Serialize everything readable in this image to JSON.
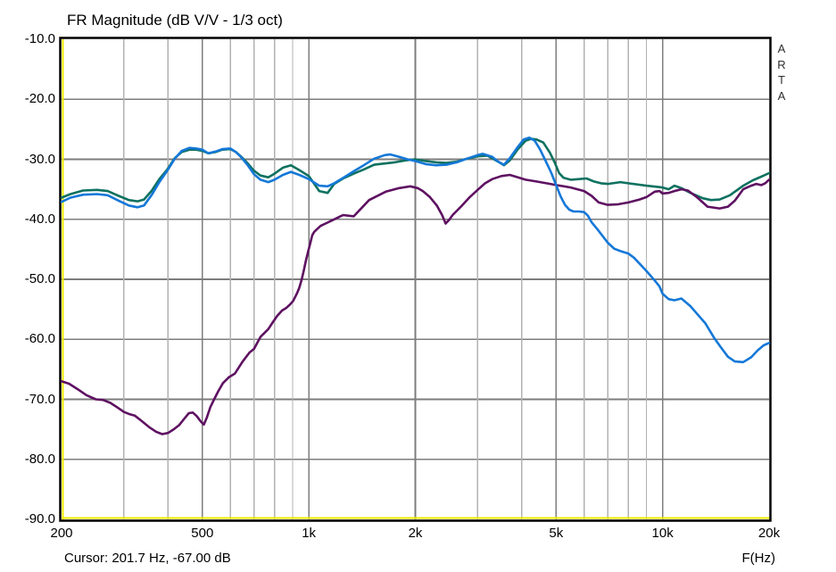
{
  "title": "FR Magnitude (dB V/V - 1/3 oct)",
  "watermark": "ARTA",
  "status": {
    "cursor": "Cursor: 201.7 Hz, -67.00 dB",
    "x_unit": "F(Hz)"
  },
  "colors": {
    "background": "#ffffff",
    "border": "#000000",
    "inner_edge_yellow": "#f0ee00",
    "grid_major": "#7d7d7d",
    "grid_minor": "#b2b2b2",
    "curve_green": "#0e7160",
    "curve_blue": "#1478d8",
    "curve_purple": "#5e1161",
    "watermark_text": "#2e2e2e"
  },
  "axes": {
    "y": {
      "tick_labels": [
        "-10.0",
        "-20.0",
        "-30.0",
        "-40.0",
        "-50.0",
        "-60.0",
        "-70.0",
        "-80.0",
        "-90.0"
      ],
      "tick_values": [
        -10,
        -20,
        -30,
        -40,
        -50,
        -60,
        -70,
        -80,
        -90
      ],
      "gridline_values": [
        -20,
        -30,
        -40,
        -50,
        -60,
        -70,
        -80
      ]
    },
    "x": {
      "tick_labels": [
        "200",
        "500",
        "1k",
        "2k",
        "5k",
        "10k",
        "20k"
      ],
      "tick_values": [
        200,
        500,
        1000,
        2000,
        5000,
        10000,
        20000
      ],
      "major_gridlines_hz": [
        500,
        1000,
        2000,
        5000,
        10000
      ],
      "minor_gridlines_hz": [
        300,
        400,
        600,
        700,
        800,
        900,
        3000,
        4000,
        6000,
        7000,
        8000,
        9000
      ]
    }
  },
  "chart_data": {
    "type": "line",
    "title": "FR Magnitude (dB V/V - 1/3 oct)",
    "xlabel": "F(Hz)",
    "ylabel": "dB V/V",
    "x_scale": "log",
    "xlim": [
      200,
      20000
    ],
    "ylim": [
      -90,
      -10
    ],
    "grid": true,
    "legend": "none",
    "series": [
      {
        "name": "green-trace",
        "color": "#0e7160",
        "points": [
          [
            200,
            -36.4
          ],
          [
            212,
            -35.8
          ],
          [
            230,
            -35.2
          ],
          [
            252,
            -35.1
          ],
          [
            270,
            -35.3
          ],
          [
            290,
            -36.1
          ],
          [
            310,
            -36.8
          ],
          [
            328,
            -37.0
          ],
          [
            342,
            -36.7
          ],
          [
            360,
            -35.2
          ],
          [
            378,
            -33.3
          ],
          [
            398,
            -31.7
          ],
          [
            418,
            -29.8
          ],
          [
            437,
            -28.8
          ],
          [
            460,
            -28.4
          ],
          [
            480,
            -28.4
          ],
          [
            500,
            -28.6
          ],
          [
            520,
            -29.0
          ],
          [
            545,
            -28.8
          ],
          [
            570,
            -28.4
          ],
          [
            600,
            -28.3
          ],
          [
            622,
            -28.8
          ],
          [
            645,
            -29.6
          ],
          [
            672,
            -30.7
          ],
          [
            700,
            -31.9
          ],
          [
            730,
            -32.7
          ],
          [
            768,
            -33.0
          ],
          [
            800,
            -32.4
          ],
          [
            845,
            -31.4
          ],
          [
            890,
            -31.0
          ],
          [
            940,
            -31.8
          ],
          [
            1000,
            -32.8
          ],
          [
            1070,
            -35.3
          ],
          [
            1130,
            -35.6
          ],
          [
            1180,
            -34.1
          ],
          [
            1250,
            -33.2
          ],
          [
            1340,
            -32.4
          ],
          [
            1430,
            -31.7
          ],
          [
            1530,
            -30.9
          ],
          [
            1640,
            -30.7
          ],
          [
            1750,
            -30.5
          ],
          [
            1870,
            -30.2
          ],
          [
            2000,
            -30.0
          ],
          [
            2140,
            -30.3
          ],
          [
            2290,
            -30.5
          ],
          [
            2450,
            -30.6
          ],
          [
            2620,
            -30.4
          ],
          [
            2800,
            -29.9
          ],
          [
            3000,
            -29.5
          ],
          [
            3200,
            -29.4
          ],
          [
            3430,
            -30.4
          ],
          [
            3560,
            -31.0
          ],
          [
            3700,
            -30.2
          ],
          [
            3900,
            -28.3
          ],
          [
            4100,
            -26.9
          ],
          [
            4250,
            -26.6
          ],
          [
            4400,
            -26.7
          ],
          [
            4600,
            -27.2
          ],
          [
            4800,
            -28.9
          ],
          [
            4950,
            -30.5
          ],
          [
            5100,
            -32.3
          ],
          [
            5250,
            -33.1
          ],
          [
            5500,
            -33.4
          ],
          [
            5800,
            -33.3
          ],
          [
            6100,
            -33.2
          ],
          [
            6400,
            -33.7
          ],
          [
            6700,
            -34.0
          ],
          [
            7000,
            -34.1
          ],
          [
            7600,
            -33.8
          ],
          [
            8000,
            -34.0
          ],
          [
            9000,
            -34.4
          ],
          [
            10000,
            -34.7
          ],
          [
            10400,
            -35.0
          ],
          [
            10800,
            -34.4
          ],
          [
            11300,
            -34.8
          ],
          [
            12000,
            -35.6
          ],
          [
            13000,
            -36.5
          ],
          [
            13700,
            -36.8
          ],
          [
            14500,
            -36.7
          ],
          [
            15500,
            -36.0
          ],
          [
            16900,
            -34.4
          ],
          [
            18000,
            -33.5
          ],
          [
            19000,
            -32.9
          ],
          [
            20000,
            -32.3
          ]
        ]
      },
      {
        "name": "purple-trace",
        "color": "#5e1161",
        "points": [
          [
            200,
            -67.0
          ],
          [
            210,
            -67.4
          ],
          [
            222,
            -68.3
          ],
          [
            235,
            -69.3
          ],
          [
            250,
            -70.0
          ],
          [
            262,
            -70.1
          ],
          [
            275,
            -70.6
          ],
          [
            290,
            -71.5
          ],
          [
            300,
            -72.1
          ],
          [
            312,
            -72.5
          ],
          [
            322,
            -72.7
          ],
          [
            335,
            -73.5
          ],
          [
            355,
            -74.7
          ],
          [
            370,
            -75.4
          ],
          [
            385,
            -75.8
          ],
          [
            400,
            -75.6
          ],
          [
            415,
            -75.0
          ],
          [
            430,
            -74.3
          ],
          [
            445,
            -73.2
          ],
          [
            458,
            -72.3
          ],
          [
            470,
            -72.2
          ],
          [
            482,
            -72.8
          ],
          [
            495,
            -73.7
          ],
          [
            505,
            -74.2
          ],
          [
            515,
            -73.0
          ],
          [
            527,
            -71.3
          ],
          [
            540,
            -70.0
          ],
          [
            555,
            -68.6
          ],
          [
            572,
            -67.3
          ],
          [
            595,
            -66.3
          ],
          [
            618,
            -65.7
          ],
          [
            650,
            -63.7
          ],
          [
            680,
            -62.2
          ],
          [
            700,
            -61.6
          ],
          [
            730,
            -59.6
          ],
          [
            768,
            -58.3
          ],
          [
            790,
            -57.2
          ],
          [
            814,
            -56.1
          ],
          [
            840,
            -55.2
          ],
          [
            862,
            -54.8
          ],
          [
            885,
            -54.2
          ],
          [
            903,
            -53.6
          ],
          [
            925,
            -52.4
          ],
          [
            940,
            -51.4
          ],
          [
            955,
            -50.0
          ],
          [
            967,
            -48.6
          ],
          [
            980,
            -47.0
          ],
          [
            995,
            -45.4
          ],
          [
            1010,
            -43.9
          ],
          [
            1022,
            -42.7
          ],
          [
            1035,
            -42.1
          ],
          [
            1052,
            -41.7
          ],
          [
            1080,
            -41.1
          ],
          [
            1115,
            -40.7
          ],
          [
            1180,
            -40.0
          ],
          [
            1250,
            -39.3
          ],
          [
            1340,
            -39.5
          ],
          [
            1480,
            -36.8
          ],
          [
            1650,
            -35.4
          ],
          [
            1800,
            -34.8
          ],
          [
            1935,
            -34.5
          ],
          [
            2030,
            -34.8
          ],
          [
            2100,
            -35.3
          ],
          [
            2200,
            -36.3
          ],
          [
            2300,
            -37.7
          ],
          [
            2380,
            -39.3
          ],
          [
            2437,
            -40.7
          ],
          [
            2500,
            -40.0
          ],
          [
            2550,
            -39.3
          ],
          [
            2700,
            -37.8
          ],
          [
            2850,
            -36.3
          ],
          [
            3000,
            -35.1
          ],
          [
            3150,
            -34.0
          ],
          [
            3300,
            -33.3
          ],
          [
            3500,
            -32.8
          ],
          [
            3700,
            -32.6
          ],
          [
            3900,
            -33.0
          ],
          [
            4100,
            -33.4
          ],
          [
            4400,
            -33.7
          ],
          [
            4700,
            -34.0
          ],
          [
            5000,
            -34.3
          ],
          [
            5500,
            -34.7
          ],
          [
            6000,
            -35.3
          ],
          [
            6300,
            -36.1
          ],
          [
            6600,
            -37.2
          ],
          [
            7000,
            -37.6
          ],
          [
            7500,
            -37.5
          ],
          [
            8000,
            -37.2
          ],
          [
            8600,
            -36.7
          ],
          [
            9000,
            -36.3
          ],
          [
            9500,
            -35.4
          ],
          [
            9800,
            -35.3
          ],
          [
            10000,
            -35.7
          ],
          [
            10400,
            -35.6
          ],
          [
            10800,
            -35.3
          ],
          [
            11300,
            -35.0
          ],
          [
            11800,
            -35.2
          ],
          [
            12500,
            -36.3
          ],
          [
            13400,
            -37.9
          ],
          [
            14500,
            -38.2
          ],
          [
            15300,
            -37.9
          ],
          [
            16000,
            -36.9
          ],
          [
            16900,
            -35.0
          ],
          [
            17800,
            -34.4
          ],
          [
            18400,
            -34.1
          ],
          [
            19000,
            -34.3
          ],
          [
            19500,
            -34.0
          ],
          [
            20000,
            -33.4
          ]
        ]
      },
      {
        "name": "blue-trace",
        "color": "#1478d8",
        "points": [
          [
            200,
            -37.1
          ],
          [
            212,
            -36.4
          ],
          [
            230,
            -35.9
          ],
          [
            252,
            -35.8
          ],
          [
            270,
            -36.0
          ],
          [
            290,
            -36.9
          ],
          [
            310,
            -37.7
          ],
          [
            328,
            -38.0
          ],
          [
            342,
            -37.7
          ],
          [
            360,
            -35.9
          ],
          [
            378,
            -33.8
          ],
          [
            398,
            -31.9
          ],
          [
            418,
            -29.9
          ],
          [
            437,
            -28.6
          ],
          [
            460,
            -28.1
          ],
          [
            480,
            -28.2
          ],
          [
            500,
            -28.4
          ],
          [
            520,
            -29.0
          ],
          [
            545,
            -28.7
          ],
          [
            570,
            -28.3
          ],
          [
            600,
            -28.2
          ],
          [
            622,
            -28.8
          ],
          [
            645,
            -29.7
          ],
          [
            672,
            -31.0
          ],
          [
            700,
            -32.5
          ],
          [
            730,
            -33.4
          ],
          [
            768,
            -33.8
          ],
          [
            800,
            -33.4
          ],
          [
            845,
            -32.6
          ],
          [
            890,
            -32.1
          ],
          [
            940,
            -32.6
          ],
          [
            1000,
            -33.3
          ],
          [
            1070,
            -34.4
          ],
          [
            1130,
            -34.5
          ],
          [
            1180,
            -34.0
          ],
          [
            1250,
            -33.1
          ],
          [
            1340,
            -32.0
          ],
          [
            1430,
            -31.0
          ],
          [
            1530,
            -29.9
          ],
          [
            1640,
            -29.3
          ],
          [
            1700,
            -29.2
          ],
          [
            1800,
            -29.6
          ],
          [
            1900,
            -30.0
          ],
          [
            2000,
            -30.3
          ],
          [
            2140,
            -30.8
          ],
          [
            2290,
            -31.0
          ],
          [
            2450,
            -30.9
          ],
          [
            2620,
            -30.5
          ],
          [
            2800,
            -29.9
          ],
          [
            3000,
            -29.3
          ],
          [
            3100,
            -29.1
          ],
          [
            3300,
            -29.6
          ],
          [
            3430,
            -30.4
          ],
          [
            3560,
            -30.9
          ],
          [
            3700,
            -29.8
          ],
          [
            3900,
            -27.9
          ],
          [
            4050,
            -26.7
          ],
          [
            4200,
            -26.4
          ],
          [
            4350,
            -26.9
          ],
          [
            4500,
            -28.3
          ],
          [
            4700,
            -30.6
          ],
          [
            4850,
            -32.3
          ],
          [
            5000,
            -34.3
          ],
          [
            5150,
            -36.2
          ],
          [
            5300,
            -37.6
          ],
          [
            5450,
            -38.4
          ],
          [
            5600,
            -38.7
          ],
          [
            5800,
            -38.7
          ],
          [
            6000,
            -38.8
          ],
          [
            6150,
            -39.4
          ],
          [
            6300,
            -40.5
          ],
          [
            6550,
            -41.7
          ],
          [
            7000,
            -43.9
          ],
          [
            7300,
            -44.9
          ],
          [
            7600,
            -45.3
          ],
          [
            8000,
            -45.7
          ],
          [
            8300,
            -46.4
          ],
          [
            9000,
            -48.6
          ],
          [
            9500,
            -50.2
          ],
          [
            9800,
            -51.2
          ],
          [
            10000,
            -52.4
          ],
          [
            10400,
            -53.3
          ],
          [
            10800,
            -53.5
          ],
          [
            11300,
            -53.2
          ],
          [
            12000,
            -54.5
          ],
          [
            13200,
            -57.3
          ],
          [
            14000,
            -59.8
          ],
          [
            14600,
            -61.3
          ],
          [
            15300,
            -62.9
          ],
          [
            16000,
            -63.7
          ],
          [
            16900,
            -63.8
          ],
          [
            17800,
            -63.0
          ],
          [
            18600,
            -61.8
          ],
          [
            19300,
            -61.0
          ],
          [
            20000,
            -60.6
          ]
        ]
      }
    ]
  }
}
